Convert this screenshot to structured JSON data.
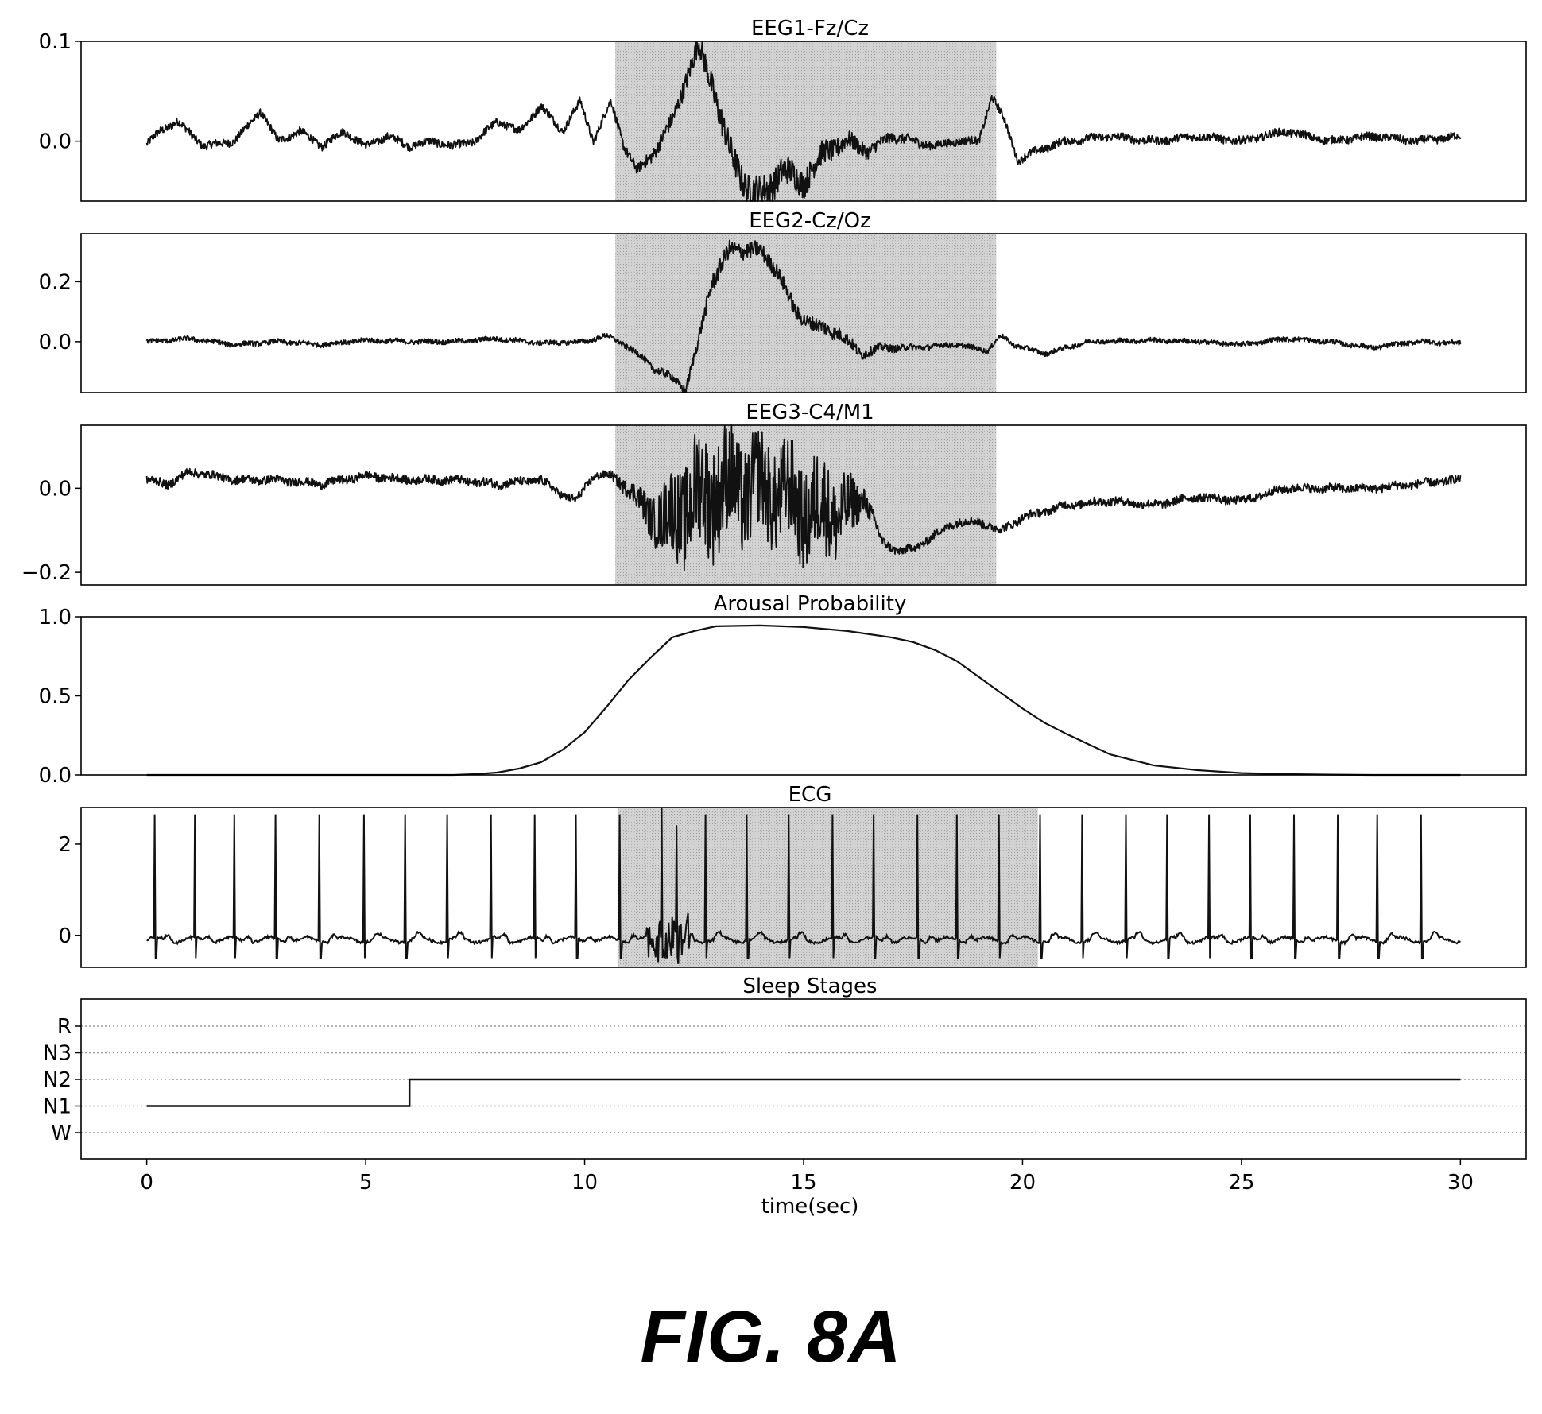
{
  "figure_label": "FIG. 8A",
  "colors": {
    "line": "#111111",
    "shade": "#c8c8c8",
    "frame": "#000000",
    "grid": "#9a9a9a"
  },
  "chart_data": [
    {
      "type": "line",
      "title": "EEG1-Fz/Cz",
      "xlim": [
        -1.5,
        31.5
      ],
      "ylim": [
        -0.06,
        0.1
      ],
      "yticks": [
        0.0,
        0.1
      ],
      "ytick_labels": [
        "0.0",
        "0.1"
      ],
      "shade": [
        10.7,
        19.4
      ],
      "x": [
        0,
        0.3,
        0.7,
        1.3,
        2,
        2.6,
        3,
        3.5,
        4,
        4.5,
        5,
        5.5,
        6,
        6.5,
        7,
        7.5,
        8,
        8.5,
        9,
        9.5,
        9.9,
        10.2,
        10.6,
        10.9,
        11.2,
        11.6,
        12,
        12.3,
        12.6,
        12.9,
        13.3,
        13.7,
        14,
        14.5,
        15,
        15.5,
        16,
        16.5,
        17,
        17.5,
        18,
        18.5,
        19,
        19.3,
        19.6,
        19.9,
        20.3,
        21,
        22,
        23,
        24,
        25,
        26,
        27,
        28,
        29,
        30
      ],
      "y": [
        -0.003,
        0.01,
        0.02,
        -0.005,
        0.0,
        0.03,
        0.0,
        0.01,
        -0.005,
        0.01,
        -0.005,
        0.005,
        -0.005,
        0.0,
        -0.005,
        0.0,
        0.02,
        0.01,
        0.035,
        0.01,
        0.04,
        0.0,
        0.04,
        -0.005,
        -0.03,
        -0.01,
        0.02,
        0.06,
        0.095,
        0.06,
        -0.01,
        -0.045,
        -0.055,
        -0.03,
        -0.04,
        -0.01,
        0.0,
        -0.01,
        0.005,
        0.0,
        -0.005,
        0.0,
        0.0,
        0.045,
        0.02,
        -0.02,
        -0.01,
        0.0,
        0.005,
        0.0,
        0.005,
        0.0,
        0.01,
        0.0,
        0.005,
        0.0,
        0.005
      ],
      "noise": [
        0.004,
        0.004,
        0.004,
        0.004,
        0.004,
        0.004,
        0.004,
        0.004,
        0.004,
        0.004,
        0.004,
        0.004,
        0.004,
        0.004,
        0.004,
        0.004,
        0.004,
        0.004,
        0.004,
        0.004,
        0.004,
        0.004,
        0.004,
        0.005,
        0.005,
        0.007,
        0.008,
        0.01,
        0.012,
        0.014,
        0.015,
        0.016,
        0.016,
        0.015,
        0.014,
        0.012,
        0.009,
        0.007,
        0.005,
        0.005,
        0.004,
        0.004,
        0.004,
        0.004,
        0.004,
        0.004,
        0.004,
        0.004,
        0.004,
        0.004,
        0.004,
        0.004,
        0.004,
        0.004,
        0.004,
        0.004,
        0.004
      ]
    },
    {
      "type": "line",
      "title": "EEG2-Cz/Oz",
      "xlim": [
        -1.5,
        31.5
      ],
      "ylim": [
        -0.17,
        0.36
      ],
      "yticks": [
        0.0,
        0.2
      ],
      "ytick_labels": [
        "0.0",
        "0.2"
      ],
      "shade": [
        10.7,
        19.4
      ],
      "x": [
        0,
        1,
        2,
        3,
        4,
        5,
        6,
        7,
        8,
        9,
        10,
        10.5,
        10.8,
        11.2,
        11.6,
        12,
        12.3,
        12.6,
        12.9,
        13.3,
        13.7,
        14,
        14.4,
        14.8,
        15.3,
        15.8,
        16.3,
        16.8,
        17.5,
        18.5,
        19.2,
        19.5,
        19.8,
        20.5,
        21.5,
        23,
        24,
        25,
        26,
        27,
        28,
        29,
        30
      ],
      "y": [
        0.0,
        0.01,
        -0.01,
        0.0,
        -0.01,
        0.005,
        0.0,
        0.0,
        0.01,
        -0.005,
        0.0,
        0.02,
        0.0,
        -0.04,
        -0.09,
        -0.12,
        -0.16,
        0.0,
        0.2,
        0.3,
        0.31,
        0.3,
        0.24,
        0.1,
        0.05,
        0.03,
        -0.04,
        -0.02,
        -0.02,
        -0.01,
        -0.03,
        0.02,
        -0.01,
        -0.04,
        0.0,
        0.005,
        0.0,
        -0.01,
        0.01,
        0.0,
        -0.02,
        0.0,
        -0.005
      ],
      "noise": [
        0.008,
        0.008,
        0.008,
        0.008,
        0.008,
        0.008,
        0.008,
        0.008,
        0.008,
        0.008,
        0.008,
        0.008,
        0.009,
        0.01,
        0.012,
        0.014,
        0.016,
        0.02,
        0.03,
        0.03,
        0.028,
        0.028,
        0.026,
        0.025,
        0.025,
        0.022,
        0.018,
        0.014,
        0.01,
        0.008,
        0.008,
        0.008,
        0.008,
        0.008,
        0.008,
        0.008,
        0.008,
        0.008,
        0.008,
        0.008,
        0.008,
        0.008,
        0.008
      ]
    },
    {
      "type": "line",
      "title": "EEG3-C4/M1",
      "xlim": [
        -1.5,
        31.5
      ],
      "ylim": [
        -0.23,
        0.15
      ],
      "yticks": [
        0.0,
        -0.2
      ],
      "ytick_labels": [
        "0.0",
        "−0.2"
      ],
      "shade": [
        10.7,
        19.4
      ],
      "x": [
        0,
        0.5,
        1,
        2,
        3,
        4,
        5,
        6,
        7,
        8,
        9,
        9.4,
        9.8,
        10.2,
        10.6,
        11,
        11.4,
        11.8,
        12.2,
        12.6,
        13,
        13.5,
        14,
        14.5,
        15,
        15.5,
        16,
        16.4,
        16.8,
        17.2,
        17.6,
        18,
        18.5,
        19,
        19.5,
        20,
        21,
        22,
        23,
        24,
        25,
        26,
        27,
        28,
        29,
        30
      ],
      "y": [
        0.02,
        0.01,
        0.04,
        0.02,
        0.02,
        0.01,
        0.03,
        0.02,
        0.02,
        0.01,
        0.02,
        -0.01,
        -0.03,
        0.03,
        0.03,
        0.0,
        -0.05,
        -0.08,
        -0.05,
        -0.02,
        0.0,
        0.0,
        0.0,
        -0.01,
        -0.05,
        -0.05,
        -0.06,
        -0.02,
        -0.13,
        -0.15,
        -0.14,
        -0.11,
        -0.08,
        -0.08,
        -0.1,
        -0.07,
        -0.04,
        -0.03,
        -0.04,
        -0.02,
        -0.03,
        0.0,
        0.0,
        0.0,
        0.01,
        0.02
      ],
      "noise": [
        0.01,
        0.01,
        0.01,
        0.01,
        0.01,
        0.01,
        0.01,
        0.01,
        0.01,
        0.01,
        0.01,
        0.01,
        0.01,
        0.01,
        0.01,
        0.02,
        0.04,
        0.08,
        0.12,
        0.14,
        0.14,
        0.13,
        0.12,
        0.12,
        0.12,
        0.12,
        0.08,
        0.03,
        0.012,
        0.01,
        0.01,
        0.01,
        0.01,
        0.01,
        0.01,
        0.01,
        0.01,
        0.01,
        0.01,
        0.01,
        0.01,
        0.01,
        0.01,
        0.01,
        0.01,
        0.01
      ]
    },
    {
      "type": "line",
      "title": "Arousal Probability",
      "xlim": [
        -1.5,
        31.5
      ],
      "ylim": [
        0.0,
        1.0
      ],
      "yticks": [
        0.0,
        0.5,
        1.0
      ],
      "ytick_labels": [
        "0.0",
        "0.5",
        "1.0"
      ],
      "x": [
        0,
        1,
        2,
        3,
        4,
        5,
        6,
        7,
        7.5,
        8,
        8.5,
        9,
        9.5,
        10,
        10.5,
        11,
        11.5,
        12,
        12.5,
        13,
        14,
        15,
        16,
        17,
        17.5,
        18,
        18.5,
        19,
        19.5,
        20,
        20.5,
        21,
        22,
        23,
        24,
        25,
        26,
        27,
        28,
        29,
        30
      ],
      "y": [
        0.0,
        0.0,
        0.0,
        0.0,
        0.0,
        0.0,
        0.0,
        0.0,
        0.005,
        0.015,
        0.04,
        0.08,
        0.16,
        0.27,
        0.43,
        0.6,
        0.74,
        0.87,
        0.91,
        0.94,
        0.945,
        0.935,
        0.91,
        0.87,
        0.84,
        0.79,
        0.72,
        0.62,
        0.52,
        0.42,
        0.33,
        0.26,
        0.13,
        0.06,
        0.03,
        0.012,
        0.005,
        0.002,
        0.0,
        0.0,
        0.0
      ]
    },
    {
      "type": "line",
      "title": "ECG",
      "xlim": [
        -1.5,
        31.5
      ],
      "ylim": [
        -0.7,
        2.8
      ],
      "yticks": [
        0,
        2
      ],
      "ytick_labels": [
        "0",
        "2"
      ],
      "shade": [
        10.75,
        20.35
      ],
      "beats": [
        0.18,
        1.1,
        2.0,
        2.95,
        3.95,
        4.95,
        5.9,
        6.85,
        7.85,
        8.85,
        9.8,
        10.8,
        11.75,
        12.1,
        12.75,
        13.7,
        14.65,
        15.65,
        16.6,
        17.6,
        18.5,
        19.45,
        20.4,
        21.35,
        22.35,
        23.3,
        24.25,
        25.2,
        26.2,
        27.2,
        28.1,
        29.1
      ],
      "r_peak": 2.65,
      "s_trough": -0.5,
      "baseline": -0.1
    },
    {
      "type": "line",
      "title": "Sleep Stages",
      "xlim": [
        -1.5,
        31.5
      ],
      "categories": [
        "W",
        "N1",
        "N2",
        "N3",
        "R"
      ],
      "x": [
        0,
        6,
        6,
        30
      ],
      "y": [
        "N1",
        "N1",
        "N2",
        "N2"
      ]
    }
  ],
  "x_axis": {
    "xlabel": "time(sec)",
    "ticks": [
      0,
      5,
      10,
      15,
      20,
      25,
      30
    ],
    "tick_labels": [
      "0",
      "5",
      "10",
      "15",
      "20",
      "25",
      "30"
    ]
  }
}
